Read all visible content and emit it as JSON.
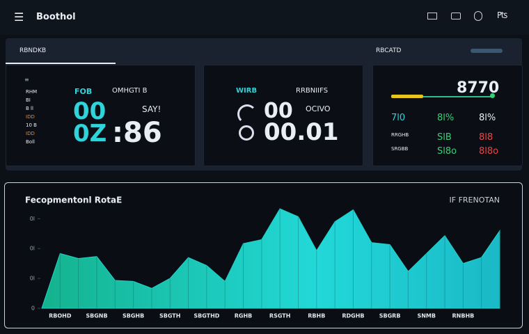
{
  "header": {
    "title": "Boothol"
  },
  "tabs": {
    "left": "RBNDKB",
    "right": "RBCATD"
  },
  "card1": {
    "label_a": "FOB",
    "label_b": "OMHGTI B",
    "big_a": "00",
    "unit": "SAY!",
    "big_b": "0Z",
    "big_c": ":86",
    "list": [
      "RHM",
      "BI",
      "B ll",
      "IDD",
      "10 B",
      "IDD",
      "Boll"
    ]
  },
  "card2": {
    "label_a": "WIRB",
    "label_b": "RRBNIIFS",
    "big_a": "00",
    "unit": "OCIVO",
    "big_b": "00.01"
  },
  "card3": {
    "big": "8770",
    "rows": [
      [
        "7l0",
        "8l%",
        "8l%"
      ],
      [
        "RRGHB",
        "SlB",
        "8l8"
      ],
      [
        "SRGBB",
        "Sl8o",
        "8l8o"
      ]
    ]
  },
  "chart_data": {
    "type": "area",
    "title": "Fecopmentonl RotaE",
    "subtitle": "IF FRENOTAN",
    "categories": [
      null,
      "RBOHD",
      null,
      "SBGNB",
      null,
      "SBGHB",
      null,
      "SBGTH",
      null,
      "SBGTHD",
      null,
      "RGHB",
      null,
      "RSGTH",
      null,
      "RBHB",
      null,
      "RDGHB",
      null,
      "SBGRB",
      null,
      "SNMB",
      null,
      "RNBHB",
      null,
      null
    ],
    "series": [
      {
        "name": "area",
        "color": "#22d3c5",
        "values": [
          0,
          55,
          50,
          52,
          28,
          27,
          20,
          30,
          51,
          43,
          27,
          65,
          69,
          100,
          92,
          58,
          87,
          99,
          66,
          64,
          37,
          55,
          73,
          45,
          51,
          78
        ]
      }
    ],
    "ylim": [
      0,
      100
    ],
    "yticks": [
      {
        "value": 0,
        "label": "0"
      },
      {
        "value": 30,
        "label": "0l"
      },
      {
        "value": 60,
        "label": "0l"
      },
      {
        "value": 90,
        "label": "0l"
      }
    ]
  }
}
